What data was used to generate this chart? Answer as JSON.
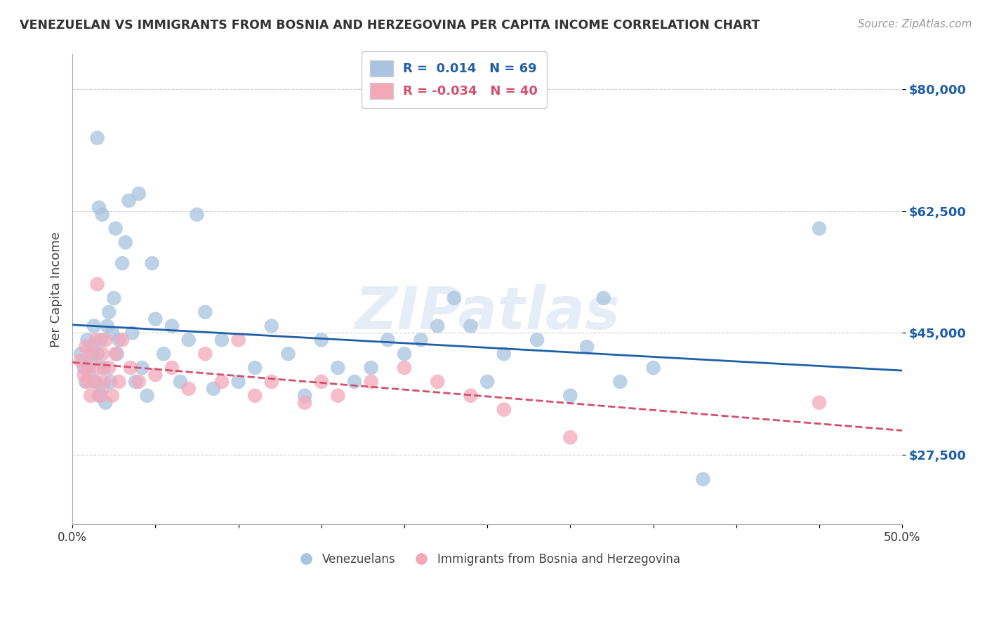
{
  "title": "VENEZUELAN VS IMMIGRANTS FROM BOSNIA AND HERZEGOVINA PER CAPITA INCOME CORRELATION CHART",
  "source": "Source: ZipAtlas.com",
  "ylabel": "Per Capita Income",
  "xlabel": "",
  "xlim": [
    0.0,
    0.5
  ],
  "ylim": [
    17500,
    85000
  ],
  "yticks": [
    27500,
    45000,
    62500,
    80000
  ],
  "ytick_labels": [
    "$27,500",
    "$45,000",
    "$62,500",
    "$80,000"
  ],
  "xticks": [
    0.0,
    0.05,
    0.1,
    0.15,
    0.2,
    0.25,
    0.3,
    0.35,
    0.4,
    0.45,
    0.5
  ],
  "xtick_labels": [
    "0.0%",
    "",
    "",
    "",
    "",
    "",
    "",
    "",
    "",
    "",
    "50.0%"
  ],
  "legend_labels": [
    "Venezuelans",
    "Immigrants from Bosnia and Herzegovina"
  ],
  "blue_color": "#a8c4e0",
  "pink_color": "#f4a7b9",
  "blue_line_color": "#1f5fa6",
  "pink_line_color": "#d44f6e",
  "R_blue": 0.014,
  "N_blue": 69,
  "R_pink": -0.034,
  "N_pink": 40,
  "watermark": "ZIPatlas",
  "blue_scatter_x": [
    0.005,
    0.007,
    0.008,
    0.009,
    0.01,
    0.011,
    0.012,
    0.013,
    0.014,
    0.015,
    0.015,
    0.016,
    0.016,
    0.017,
    0.018,
    0.018,
    0.019,
    0.02,
    0.021,
    0.022,
    0.023,
    0.024,
    0.025,
    0.026,
    0.027,
    0.028,
    0.03,
    0.032,
    0.034,
    0.036,
    0.038,
    0.04,
    0.042,
    0.045,
    0.048,
    0.05,
    0.055,
    0.06,
    0.065,
    0.07,
    0.075,
    0.08,
    0.085,
    0.09,
    0.1,
    0.11,
    0.12,
    0.13,
    0.14,
    0.15,
    0.16,
    0.17,
    0.18,
    0.19,
    0.2,
    0.21,
    0.22,
    0.23,
    0.24,
    0.25,
    0.26,
    0.28,
    0.3,
    0.31,
    0.32,
    0.33,
    0.35,
    0.38,
    0.45
  ],
  "blue_scatter_y": [
    42000,
    40000,
    38000,
    44000,
    39000,
    41000,
    43000,
    46000,
    38000,
    42000,
    73000,
    36000,
    63000,
    44000,
    37000,
    62000,
    40000,
    35000,
    46000,
    48000,
    38000,
    45000,
    50000,
    60000,
    42000,
    44000,
    55000,
    58000,
    64000,
    45000,
    38000,
    65000,
    40000,
    36000,
    55000,
    47000,
    42000,
    46000,
    38000,
    44000,
    62000,
    48000,
    37000,
    44000,
    38000,
    40000,
    46000,
    42000,
    36000,
    44000,
    40000,
    38000,
    40000,
    44000,
    42000,
    44000,
    46000,
    50000,
    46000,
    38000,
    42000,
    44000,
    36000,
    43000,
    50000,
    38000,
    40000,
    24000,
    60000
  ],
  "pink_scatter_x": [
    0.005,
    0.007,
    0.008,
    0.009,
    0.01,
    0.011,
    0.012,
    0.013,
    0.014,
    0.015,
    0.016,
    0.017,
    0.018,
    0.019,
    0.02,
    0.022,
    0.024,
    0.026,
    0.028,
    0.03,
    0.035,
    0.04,
    0.05,
    0.06,
    0.07,
    0.08,
    0.09,
    0.1,
    0.11,
    0.12,
    0.14,
    0.15,
    0.16,
    0.18,
    0.2,
    0.22,
    0.24,
    0.26,
    0.3,
    0.45
  ],
  "pink_scatter_y": [
    41000,
    39000,
    43000,
    38000,
    40000,
    36000,
    42000,
    38000,
    44000,
    52000,
    40000,
    36000,
    42000,
    38000,
    44000,
    40000,
    36000,
    42000,
    38000,
    44000,
    40000,
    38000,
    39000,
    40000,
    37000,
    42000,
    38000,
    44000,
    36000,
    38000,
    35000,
    38000,
    36000,
    38000,
    40000,
    38000,
    36000,
    34000,
    30000,
    35000
  ]
}
